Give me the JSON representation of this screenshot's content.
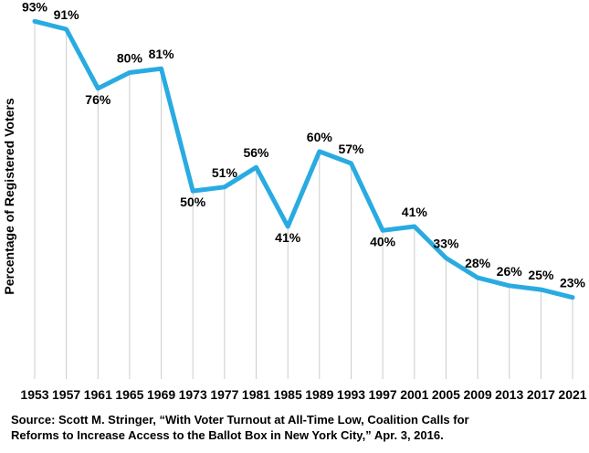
{
  "chart_data": {
    "type": "line",
    "title": "",
    "xlabel": "",
    "ylabel": "Percentage of Registered Voters",
    "categories": [
      "1953",
      "1957",
      "1961",
      "1965",
      "1969",
      "1973",
      "1977",
      "1981",
      "1985",
      "1989",
      "1993",
      "1997",
      "2001",
      "2005",
      "2009",
      "2013",
      "2017",
      "2021"
    ],
    "values": [
      93,
      91,
      76,
      80,
      81,
      50,
      51,
      56,
      41,
      60,
      57,
      40,
      41,
      33,
      28,
      26,
      25,
      23
    ],
    "point_labels": [
      "93%",
      "91%",
      "76%",
      "80%",
      "81%",
      "50%",
      "51%",
      "56%",
      "41%",
      "60%",
      "57%",
      "40%",
      "41%",
      "33%",
      "28%",
      "26%",
      "25%",
      "23%"
    ],
    "line_color": "#29ABE2",
    "gridline_color": "#CCCCCC",
    "text_color": "#000000",
    "background_color": "#FFFFFF",
    "legend_position": "none",
    "grid": "vertical-per-point",
    "ylim": [
      0,
      100
    ]
  },
  "source_lines": [
    "Source: Scott M. Stringer, “With Voter Turnout at All-Time Low, Coalition Calls for",
    "Reforms to Increase Access to the Ballot Box in New York City,” Apr. 3, 2016."
  ]
}
